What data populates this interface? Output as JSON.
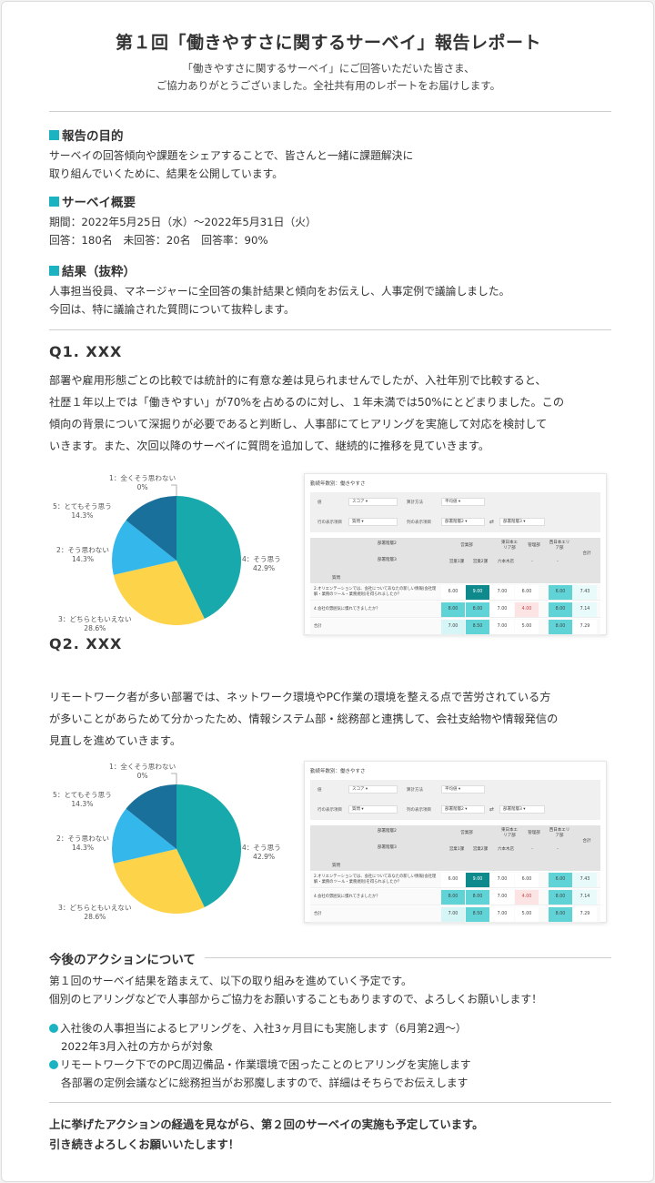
{
  "title": "第１回「働きやすさに関するサーベイ」報告レポート",
  "subtitle": [
    "「働きやすさに関するサーベイ」にご回答いただいた皆さま、",
    "ご協力ありがとうございました。全社共有用のレポートをお届けします。"
  ],
  "purpose": {
    "heading": "報告の目的",
    "lines": [
      "サーベイの回答傾向や課題をシェアすることで、皆さんと一緒に課題解決に",
      "取り組んでいくために、結果を公開しています。"
    ]
  },
  "overview": {
    "heading": "サーベイ概要",
    "lines": [
      "期間：2022年5月25日（水）〜2022年5月31日（火）",
      "回答：180名　未回答：20名　回答率：90%"
    ]
  },
  "results": {
    "heading": "結果（抜粋）",
    "lines": [
      "人事担当役員、マネージャーに全回答の集計結果と傾向をお伝えし、人事定例で議論しました。",
      "今回は、特に議論された質問について抜粋します。"
    ]
  },
  "q1": {
    "heading": "Q1. XXX",
    "lines": [
      "部署や雇用形態ごとの比較では統計的に有意な差は見られませんでしたが、入社年別で比較すると、",
      "社歴１年以上では「働きやすい」が70%を占めるのに対し、１年未満では50%にとどまりました。この",
      "傾向の背景について深掘りが必要であると判断し、人事部にてヒアリングを実施して対応を検討して",
      "いきます。また、次回以降のサーベイに質問を追加して、継続的に推移を見ていきます。"
    ]
  },
  "q2": {
    "heading": "Q2. XXX",
    "lines": [
      "リモートワーク者が多い部署では、ネットワーク環境やPC作業の環境を整える点で苦労されている方",
      "が多いことがあらためて分かったため、情報システム部・総務部と連携して、会社支給物や情報発信の",
      "見直しを進めていきます。"
    ]
  },
  "chart_data": [
    {
      "type": "pie",
      "categories": [
        "4：そう思う",
        "3：どちらともいえない",
        "2：そう思わない",
        "5：とてもそう思う",
        "1：全くそう思わない"
      ],
      "values": [
        42.9,
        28.6,
        14.3,
        14.3,
        0
      ],
      "value_labels": [
        "42.9%",
        "28.6%",
        "14.3%",
        "14.3%",
        "0%"
      ],
      "colors": [
        "#17a9ab",
        "#fdd34a",
        "#34b7ea",
        "#19709b",
        "#999999"
      ]
    },
    {
      "type": "pie",
      "categories": [
        "4：そう思う",
        "3：どちらともいえない",
        "2：そう思わない",
        "5：とてもそう思う",
        "1：全くそう思わない"
      ],
      "values": [
        42.9,
        28.6,
        14.3,
        14.3,
        0
      ],
      "value_labels": [
        "42.9%",
        "28.6%",
        "14.3%",
        "14.3%",
        "0%"
      ],
      "colors": [
        "#17a9ab",
        "#fdd34a",
        "#34b7ea",
        "#19709b",
        "#999999"
      ]
    }
  ],
  "screenshot": {
    "title": "勤続年数別：働きやすさ",
    "filters": {
      "row1": [
        {
          "label": "値",
          "value": "スコア"
        },
        {
          "label": "算計方法",
          "value": "平均値"
        }
      ],
      "row2": [
        {
          "label": "行の表示項目",
          "value": "質問"
        },
        {
          "label": "列の表示項目",
          "value": "部署階層2"
        },
        {
          "label": "",
          "value": "部署階層3"
        }
      ]
    },
    "header": {
      "dept2": "部署階層2",
      "dept3": "部署階層3",
      "question": "質問",
      "sales": "営業部",
      "east": "東日本エリア部",
      "mgmt": "管理部",
      "west": "西日本エリア部",
      "total": "合計",
      "sales1": "営業1課",
      "sales2": "営業2課",
      "roppongi": "六本木店",
      "dash1": "-",
      "dash2": "-"
    },
    "rows": [
      {
        "label": "2.オリエンテーションでは、会社についてあなたの新しい情報(会社理解・業務のツール・業務規則)を得られましたか？",
        "values": [
          "6.00",
          "9.00",
          "7.00",
          "6.00",
          "6.00",
          "7.43"
        ]
      },
      {
        "label": "4.会社の雰囲気に慣れてきましたか？",
        "values": [
          "8.00",
          "8.00",
          "7.00",
          "4.00",
          "8.00",
          "7.14"
        ]
      },
      {
        "label": "合計",
        "values": [
          "7.00",
          "8.50",
          "7.00",
          "5.00",
          "8.00",
          "7.29"
        ]
      }
    ],
    "cell_colors": [
      [
        "#ffffff",
        "#0e8a8c",
        "#ffffff",
        "#ffffff",
        "#5fd3d6",
        "#e9fafa"
      ],
      [
        "#5fd3d6",
        "#5fd3d6",
        "#ffffff",
        "#fde4e4",
        "#5fd3d6",
        "#e9fafa"
      ],
      [
        "#d6f5f6",
        "#5fd3d6",
        "#ffffff",
        "#ffffff",
        "#5fd3d6",
        "#ffffff"
      ]
    ]
  },
  "actions": {
    "heading": "今後のアクションについて",
    "lines": [
      "第１回のサーベイ結果を踏まえて、以下の取り組みを進めていく予定です。",
      "個別のヒアリングなどで人事部からご協力をお願いすることもありますので、よろしくお願いします！"
    ],
    "items": [
      {
        "text": "入社後の人事担当によるヒアリングを、入社3ヶ月目にも実施します（6月第2週〜）",
        "sub": "2022年3月入社の方からが対象"
      },
      {
        "text": "リモートワーク下でのPC周辺備品・作業環境で困ったことのヒアリングを実施します",
        "sub": "各部署の定例会議などに総務担当がお邪魔しますので、詳細はそちらでお伝えします"
      }
    ]
  },
  "closing": [
    "上に挙げたアクションの経過を見ながら、第２回のサーベイの実施も予定しています。",
    "引き続きよろしくお願いいたします！"
  ]
}
